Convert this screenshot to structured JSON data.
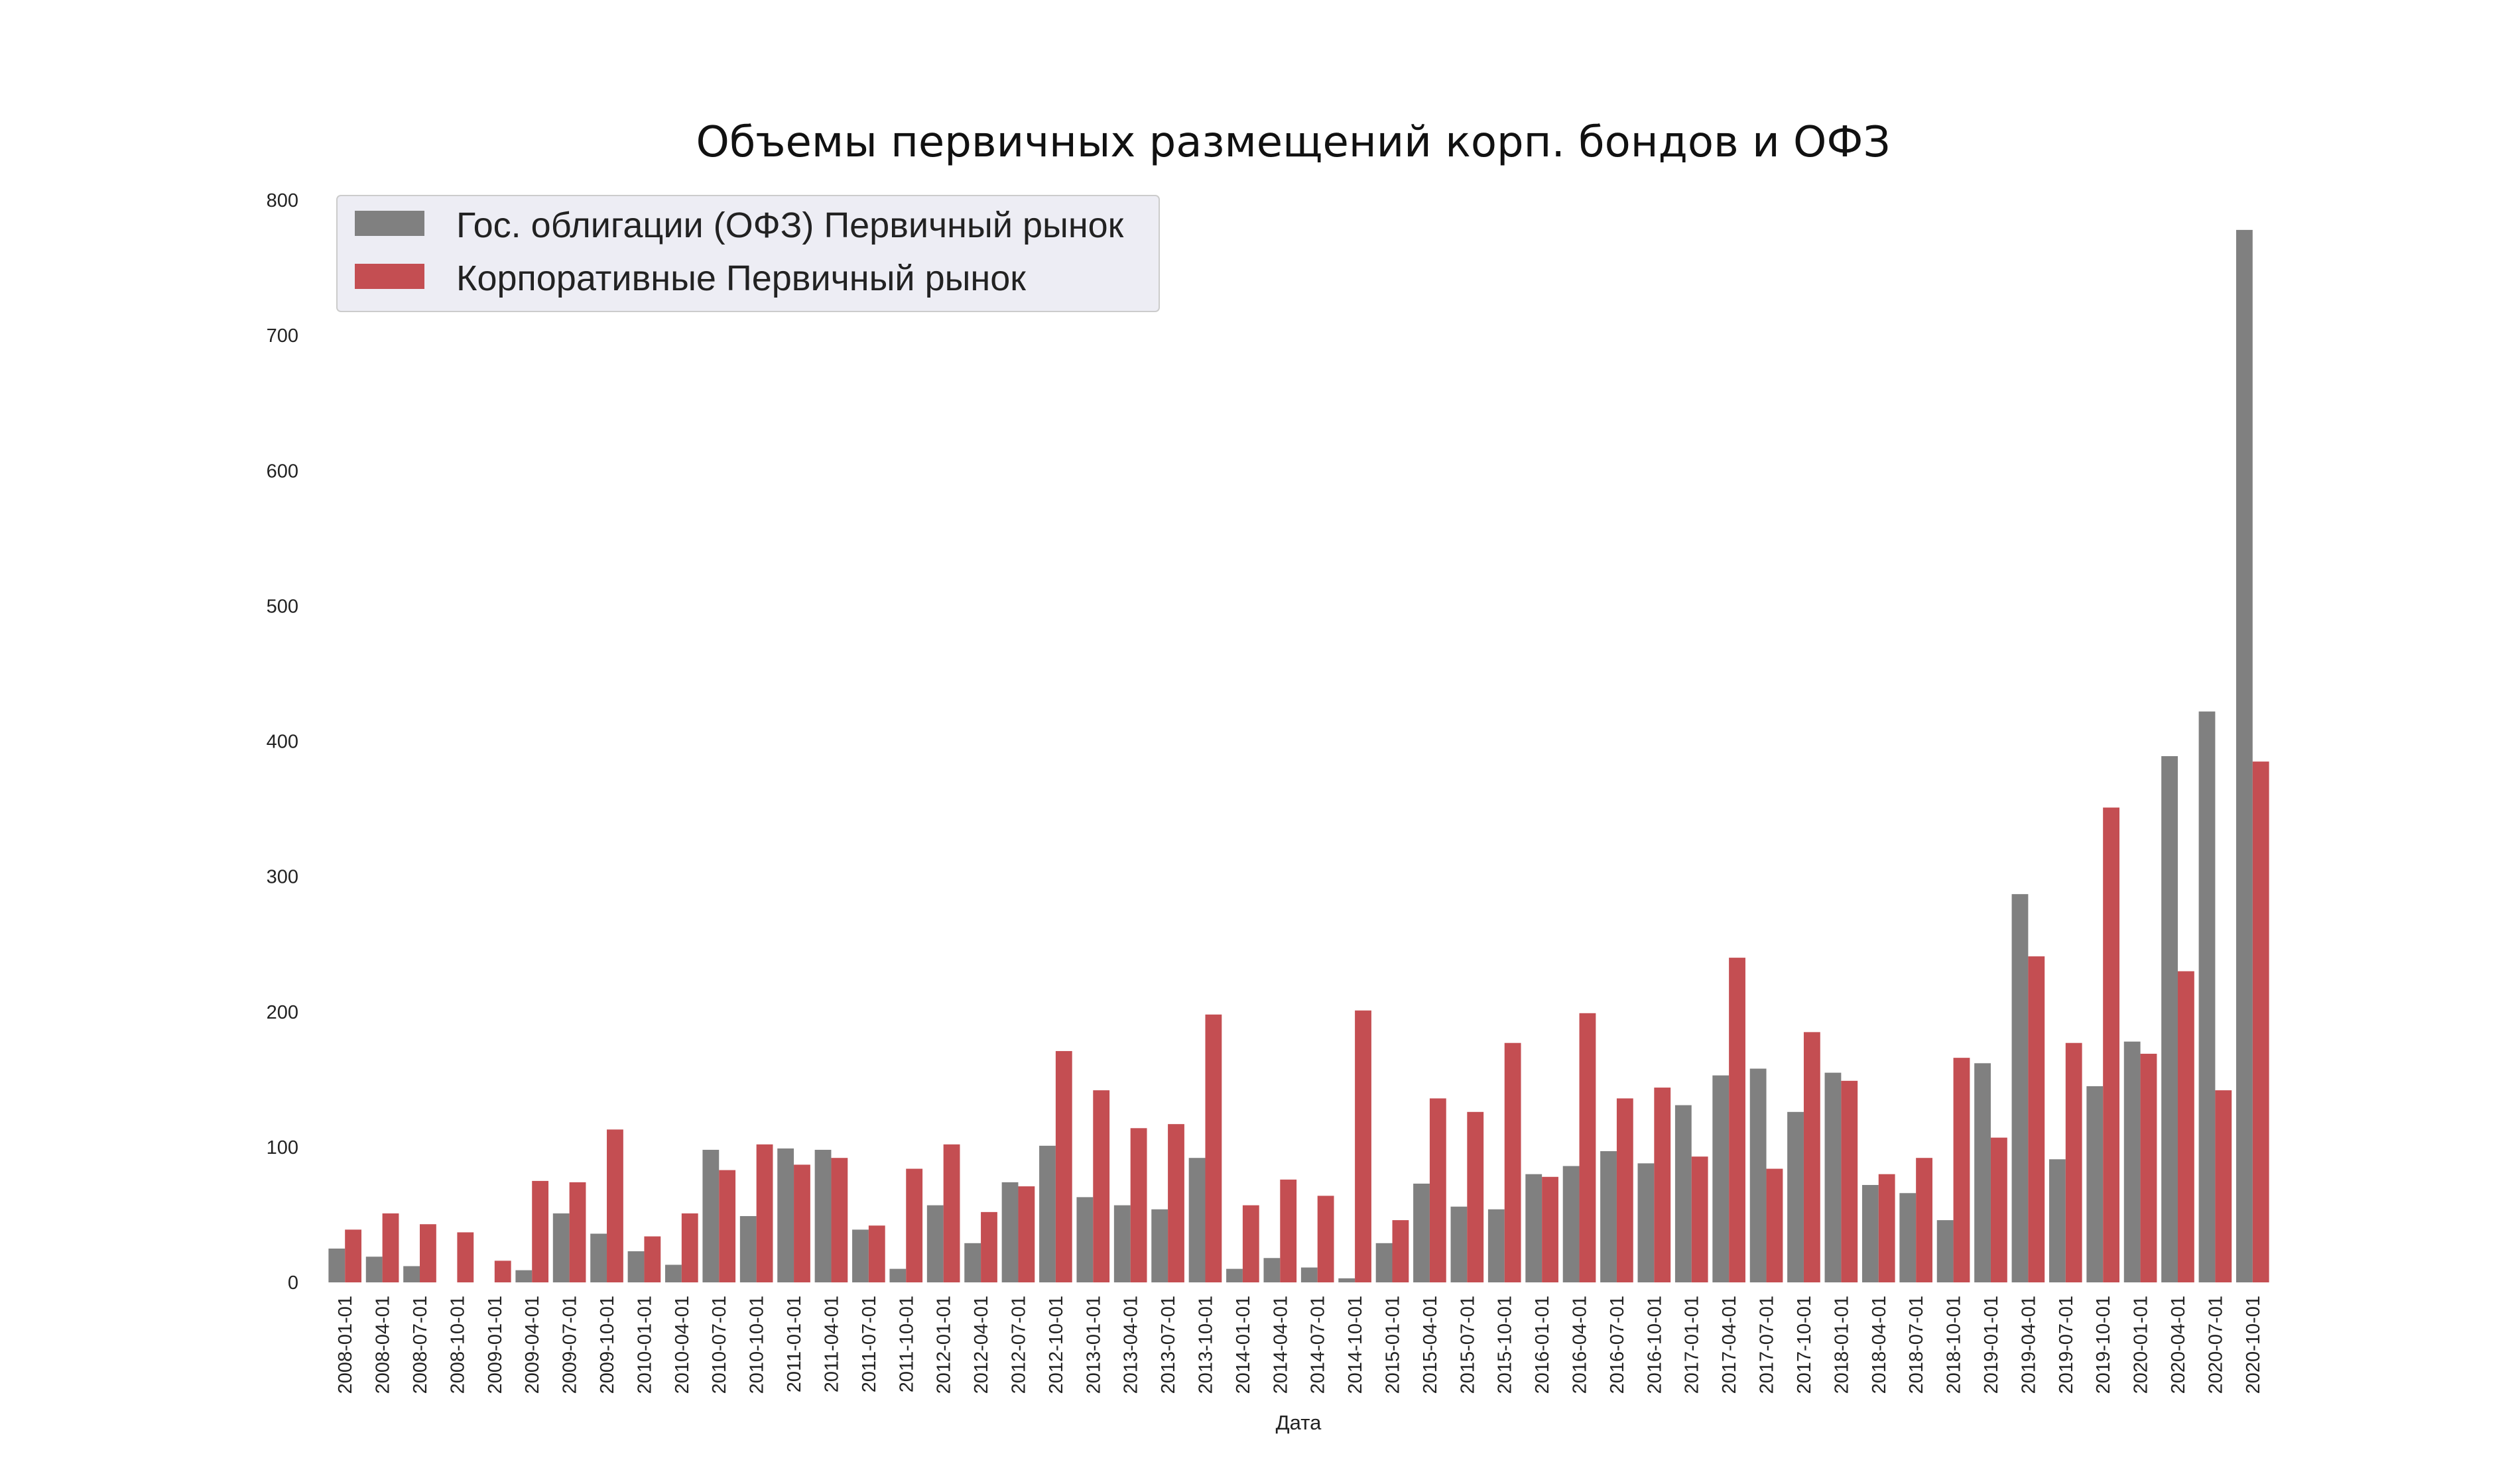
{
  "chart_data": {
    "type": "bar",
    "title": "Объемы первичных размещений корп. бондов и ОФЗ",
    "xlabel": "Дата",
    "ylabel": "",
    "ylim": [
      0,
      800
    ],
    "yticks": [
      0,
      100,
      200,
      300,
      400,
      500,
      600,
      700,
      800
    ],
    "grid": false,
    "legend_position": "top-left",
    "categories": [
      "2008-01-01",
      "2008-04-01",
      "2008-07-01",
      "2008-10-01",
      "2009-01-01",
      "2009-04-01",
      "2009-07-01",
      "2009-10-01",
      "2010-01-01",
      "2010-04-01",
      "2010-07-01",
      "2010-10-01",
      "2011-01-01",
      "2011-04-01",
      "2011-07-01",
      "2011-10-01",
      "2012-01-01",
      "2012-04-01",
      "2012-07-01",
      "2012-10-01",
      "2013-01-01",
      "2013-04-01",
      "2013-07-01",
      "2013-10-01",
      "2014-01-01",
      "2014-04-01",
      "2014-07-01",
      "2014-10-01",
      "2015-01-01",
      "2015-04-01",
      "2015-07-01",
      "2015-10-01",
      "2016-01-01",
      "2016-04-01",
      "2016-07-01",
      "2016-10-01",
      "2017-01-01",
      "2017-04-01",
      "2017-07-01",
      "2017-10-01",
      "2018-01-01",
      "2018-04-01",
      "2018-07-01",
      "2018-10-01",
      "2019-01-01",
      "2019-04-01",
      "2019-07-01",
      "2019-10-01",
      "2020-01-01",
      "2020-04-01",
      "2020-07-01",
      "2020-10-01"
    ],
    "series": [
      {
        "name": "Гос. облигации (ОФЗ) Первичный рынок",
        "color": "#808080",
        "values": [
          25,
          19,
          12,
          0,
          0,
          9,
          51,
          36,
          23,
          13,
          98,
          49,
          99,
          98,
          39,
          10,
          57,
          29,
          74,
          101,
          63,
          57,
          54,
          92,
          10,
          18,
          11,
          3,
          29,
          73,
          56,
          54,
          80,
          86,
          97,
          88,
          131,
          153,
          158,
          126,
          155,
          72,
          66,
          46,
          162,
          287,
          91,
          145,
          178,
          389,
          422,
          778
        ]
      },
      {
        "name": "Корпоративные Первичный рынок",
        "color": "#c44e52",
        "values": [
          39,
          51,
          43,
          37,
          16,
          75,
          74,
          113,
          34,
          51,
          83,
          102,
          87,
          92,
          42,
          84,
          102,
          52,
          71,
          171,
          142,
          114,
          117,
          198,
          57,
          76,
          64,
          201,
          46,
          136,
          126,
          177,
          78,
          199,
          136,
          144,
          93,
          240,
          84,
          185,
          149,
          80,
          92,
          166,
          107,
          241,
          177,
          351,
          169,
          230,
          142,
          385
        ]
      }
    ]
  }
}
